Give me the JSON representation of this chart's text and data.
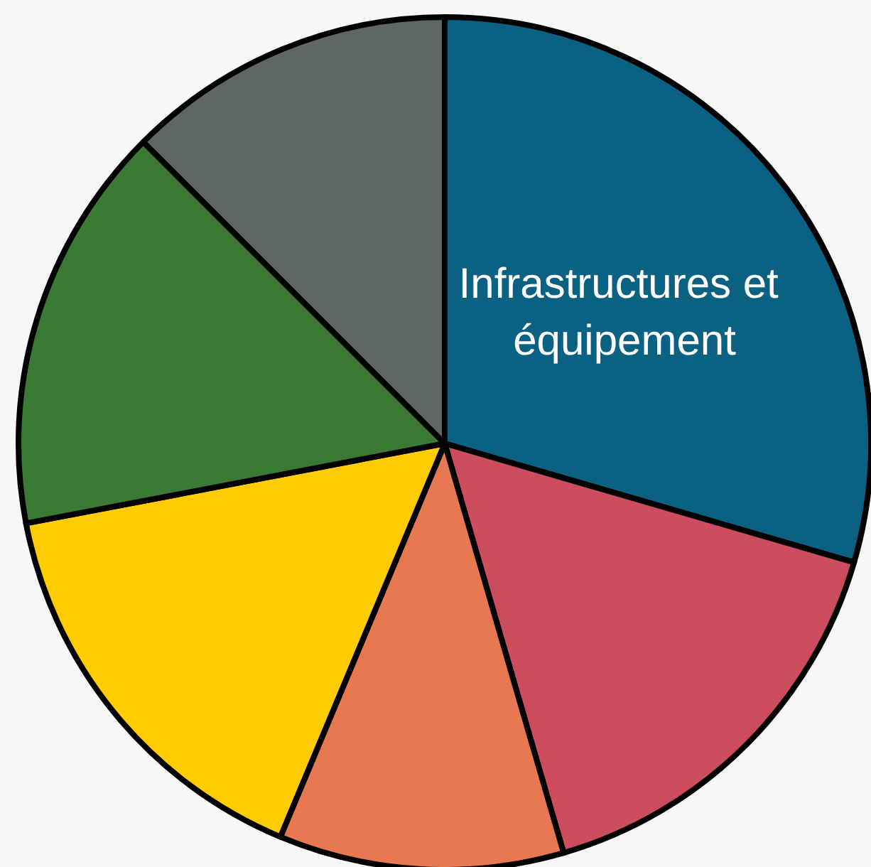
{
  "chart_data": {
    "type": "pie",
    "categories": [
      "Infrastructures et équipement",
      null,
      null,
      null,
      null,
      null
    ],
    "values": [
      29.5,
      16,
      10.8,
      15.7,
      15.5,
      12.5
    ],
    "colors": [
      "#0b6182",
      "#cc4e5e",
      "#e87852",
      "#ffcc00",
      "#3a7a35",
      "#5f6766"
    ],
    "legend": false
  }
}
